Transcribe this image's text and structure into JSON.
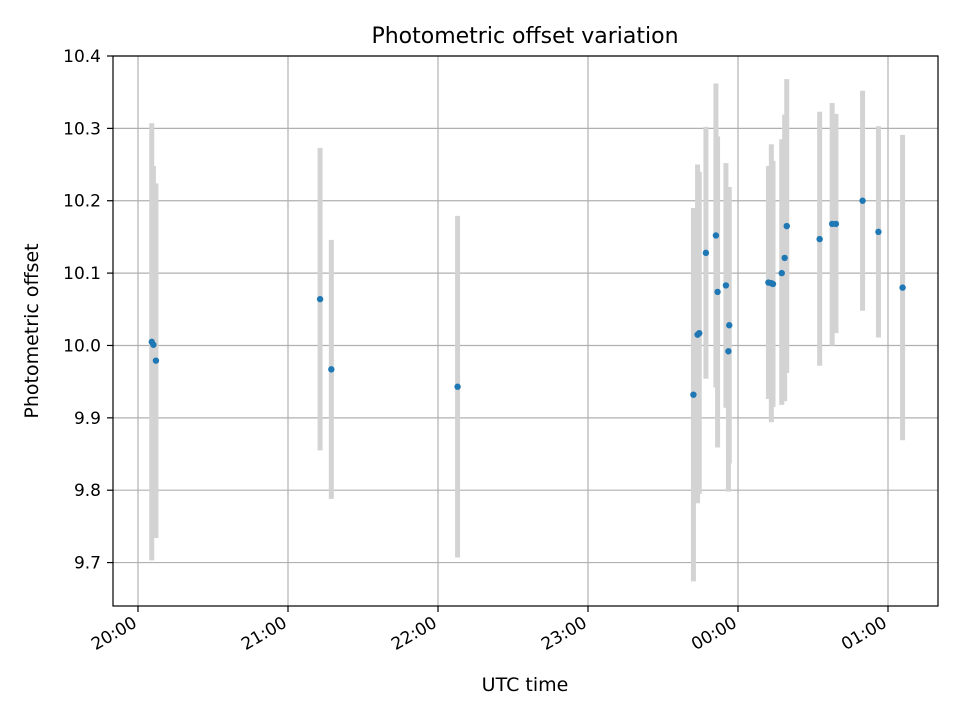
{
  "chart_data": {
    "type": "scatter",
    "title": "Photometric offset variation",
    "xlabel": "UTC time",
    "ylabel": "Photometric offset",
    "xlim": [
      "19:50",
      "01:20"
    ],
    "ylim": [
      9.64,
      10.4
    ],
    "grid": true,
    "x_ticks": [
      "20:00",
      "21:00",
      "22:00",
      "23:00",
      "00:00",
      "01:00"
    ],
    "y_ticks": [
      "9.7",
      "9.8",
      "9.9",
      "10.0",
      "10.1",
      "10.2",
      "10.3",
      "10.4"
    ],
    "colors": {
      "marker": "#1f77b4",
      "errorbar": "#d3d3d3",
      "grid": "#b0b0b0"
    },
    "points": [
      {
        "x": "20:05:30",
        "y": 10.005,
        "ylow": 9.703,
        "yhigh": 10.307
      },
      {
        "x": "20:06:10",
        "y": 10.001,
        "ylow": 9.754,
        "yhigh": 10.248
      },
      {
        "x": "20:07:10",
        "y": 9.979,
        "ylow": 9.734,
        "yhigh": 10.224
      },
      {
        "x": "21:12:50",
        "y": 10.064,
        "ylow": 9.855,
        "yhigh": 10.273
      },
      {
        "x": "21:17:20",
        "y": 9.967,
        "ylow": 9.788,
        "yhigh": 10.146
      },
      {
        "x": "22:07:50",
        "y": 9.943,
        "ylow": 9.707,
        "yhigh": 10.179
      },
      {
        "x": "23:42:10",
        "y": 9.932,
        "ylow": 9.674,
        "yhigh": 10.19
      },
      {
        "x": "23:43:50",
        "y": 10.015,
        "ylow": 9.782,
        "yhigh": 10.25
      },
      {
        "x": "23:44:30",
        "y": 10.017,
        "ylow": 9.795,
        "yhigh": 10.24
      },
      {
        "x": "23:47:10",
        "y": 10.128,
        "ylow": 9.954,
        "yhigh": 10.302
      },
      {
        "x": "23:51:10",
        "y": 10.152,
        "ylow": 9.942,
        "yhigh": 10.362
      },
      {
        "x": "23:51:50",
        "y": 10.074,
        "ylow": 9.859,
        "yhigh": 10.289
      },
      {
        "x": "23:55:10",
        "y": 10.083,
        "ylow": 9.914,
        "yhigh": 10.252
      },
      {
        "x": "23:56:30",
        "y": 10.028,
        "ylow": 9.837,
        "yhigh": 10.219
      },
      {
        "x": "23:56:10",
        "y": 9.992,
        "ylow": 9.798,
        "yhigh": 10.186
      },
      {
        "x": "00:12:10",
        "y": 10.087,
        "ylow": 9.926,
        "yhigh": 10.248
      },
      {
        "x": "00:13:20",
        "y": 10.086,
        "ylow": 9.894,
        "yhigh": 10.278
      },
      {
        "x": "00:14:00",
        "y": 10.085,
        "ylow": 9.915,
        "yhigh": 10.255
      },
      {
        "x": "00:17:30",
        "y": 10.1,
        "ylow": 9.918,
        "yhigh": 10.285
      },
      {
        "x": "00:18:40",
        "y": 10.121,
        "ylow": 9.923,
        "yhigh": 10.319
      },
      {
        "x": "00:19:30",
        "y": 10.165,
        "ylow": 9.962,
        "yhigh": 10.368
      },
      {
        "x": "00:32:40",
        "y": 10.147,
        "ylow": 9.972,
        "yhigh": 10.323
      },
      {
        "x": "00:37:40",
        "y": 10.168,
        "ylow": 10.0,
        "yhigh": 10.335
      },
      {
        "x": "00:39:10",
        "y": 10.168,
        "ylow": 10.017,
        "yhigh": 10.32
      },
      {
        "x": "00:49:50",
        "y": 10.2,
        "ylow": 10.048,
        "yhigh": 10.352
      },
      {
        "x": "00:56:10",
        "y": 10.157,
        "ylow": 10.011,
        "yhigh": 10.303
      },
      {
        "x": "01:05:50",
        "y": 10.08,
        "ylow": 9.869,
        "yhigh": 10.291
      }
    ]
  }
}
